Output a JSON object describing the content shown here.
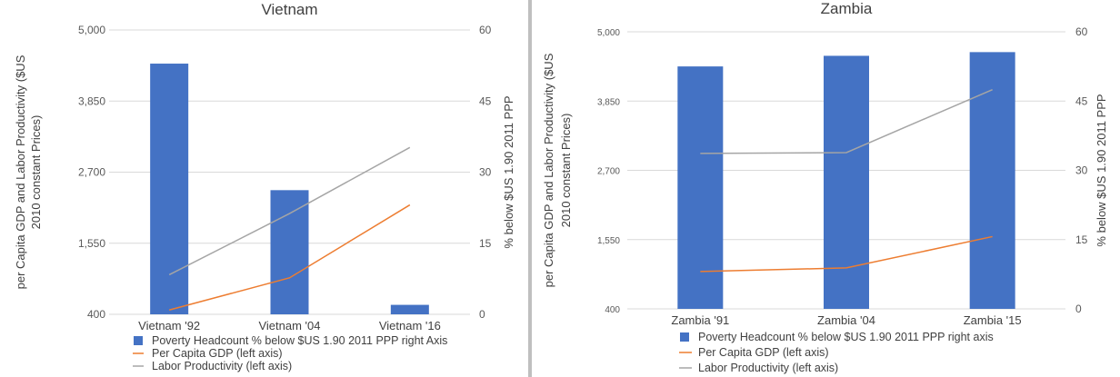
{
  "chart_data": [
    {
      "type": "bar",
      "title": "Vietnam",
      "categories": [
        "Vietnam '92",
        "Vietnam '04",
        "Vietnam '16"
      ],
      "ylabel_left": "per Capita GDP and Labor Productivity ($US 2010 constant Prices)",
      "ylabel_right": "% below $US 1.90 2011 PPP",
      "left_axis": {
        "min": 400,
        "max": 5000,
        "ticks": [
          "400",
          "1,550",
          "2,700",
          "3,850",
          "5,000"
        ]
      },
      "right_axis": {
        "min": 0,
        "max": 60,
        "ticks": [
          "0",
          "15",
          "30",
          "45",
          "60"
        ]
      },
      "grid": true,
      "legend_position": "bottom",
      "series": [
        {
          "name": "Poverty Headcount % below $US 1.90 2011 PPP right Axis",
          "kind": "bar",
          "axis": "right",
          "color": "#4472c4",
          "values": [
            52.9,
            26.2,
            2.0
          ]
        },
        {
          "name": "Per Capita GDP (left axis)",
          "kind": "line",
          "axis": "left",
          "color": "#ed7d31",
          "values": [
            470,
            990,
            2170
          ]
        },
        {
          "name": "Labor Productivity (left axis)",
          "kind": "line",
          "axis": "left",
          "color": "#a5a5a5",
          "values": [
            1040,
            2030,
            3100
          ]
        }
      ]
    },
    {
      "type": "bar",
      "title": "Zambia",
      "categories": [
        "Zambia '91",
        "Zambia  '04",
        "Zambia '15"
      ],
      "ylabel_left": "per Capita GDP and Labor Productivity ($US 2010 constant Prices)",
      "ylabel_right": "% below $US 1.90 2011 PPP",
      "left_axis": {
        "min": 400,
        "max": 5000,
        "ticks": [
          "400",
          "1,550",
          "2,700",
          "3,850",
          "5,000"
        ]
      },
      "right_axis": {
        "min": 0,
        "max": 60,
        "ticks": [
          "0",
          "15",
          "30",
          "45",
          "60"
        ]
      },
      "grid": true,
      "legend_position": "bottom",
      "series": [
        {
          "name": "Poverty Headcount % below $US 1.90 2011 PPP right axis",
          "kind": "bar",
          "axis": "right",
          "color": "#4472c4",
          "values": [
            52.5,
            54.8,
            55.6
          ]
        },
        {
          "name": "Per Capita GDP (left axis)",
          "kind": "line",
          "axis": "left",
          "color": "#ed7d31",
          "values": [
            1020,
            1080,
            1600
          ]
        },
        {
          "name": "Labor Productivity (left axis)",
          "kind": "line",
          "axis": "left",
          "color": "#a5a5a5",
          "values": [
            2980,
            2995,
            4040
          ]
        }
      ]
    }
  ]
}
